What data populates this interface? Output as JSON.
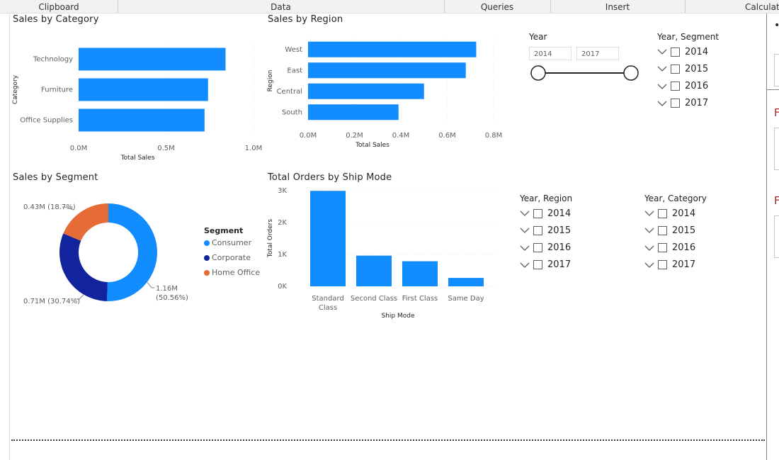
{
  "ribbon": {
    "groups": [
      "Clipboard",
      "Data",
      "Queries",
      "Insert",
      "Calculations"
    ]
  },
  "visuals": {
    "sales_by_category": {
      "title": "Sales by Category",
      "xlabel": "Total Sales",
      "ylabel": "Category",
      "ticks": [
        "0.0M",
        "0.5M",
        "1.0M"
      ]
    },
    "sales_by_region": {
      "title": "Sales by Region",
      "xlabel": "Total Sales",
      "ylabel": "Region",
      "ticks": [
        "0.0M",
        "0.2M",
        "0.4M",
        "0.6M",
        "0.8M"
      ]
    },
    "sales_by_segment": {
      "title": "Sales by Segment",
      "legend_title": "Segment",
      "labels": {
        "home_office": "0.43M (18.7%)",
        "corporate": "0.71M (30.74%)",
        "consumer_value": "1.16M",
        "consumer_pct": "(50.56%)"
      }
    },
    "orders_by_ship_mode": {
      "title": "Total Orders by Ship Mode",
      "xlabel": "Ship Mode",
      "ylabel": "Total Orders",
      "ticks": [
        "0K",
        "1K",
        "2K",
        "3K"
      ],
      "category_lines": [
        [
          "Standard",
          "Class"
        ],
        [
          "Second Class"
        ],
        [
          "First Class"
        ],
        [
          "Same Day"
        ]
      ]
    }
  },
  "chart_data": [
    {
      "type": "bar",
      "orientation": "horizontal",
      "title": "Sales by Category",
      "categories": [
        "Technology",
        "Furniture",
        "Office Supplies"
      ],
      "values": [
        0.84,
        0.74,
        0.72
      ],
      "xlabel": "Total Sales",
      "ylabel": "Category",
      "xlim": [
        0,
        1.0
      ],
      "unit": "M",
      "color": "#118DFF"
    },
    {
      "type": "bar",
      "orientation": "horizontal",
      "title": "Sales by Region",
      "categories": [
        "West",
        "East",
        "Central",
        "South"
      ],
      "values": [
        0.725,
        0.68,
        0.5,
        0.39
      ],
      "xlabel": "Total Sales",
      "ylabel": "Region",
      "xlim": [
        0,
        0.8
      ],
      "unit": "M",
      "color": "#118DFF"
    },
    {
      "type": "pie",
      "donut": true,
      "title": "Sales by Segment",
      "categories": [
        "Consumer",
        "Corporate",
        "Home Office"
      ],
      "values": [
        1.16,
        0.71,
        0.43
      ],
      "percents": [
        50.56,
        30.74,
        18.7
      ],
      "colors": [
        "#118DFF",
        "#12239E",
        "#E66C37"
      ],
      "legend": "right"
    },
    {
      "type": "bar",
      "title": "Total Orders by Ship Mode",
      "categories": [
        "Standard Class",
        "Second Class",
        "First Class",
        "Same Day"
      ],
      "values": [
        2994,
        964,
        787,
        264
      ],
      "xlabel": "Ship Mode",
      "ylabel": "Total Orders",
      "ylim": [
        0,
        3000
      ],
      "color": "#118DFF"
    }
  ],
  "slicers": {
    "year_range": {
      "title": "Year",
      "from": "2014",
      "to": "2017"
    },
    "year_segment": {
      "title": "Year, Segment",
      "items": [
        "2014",
        "2015",
        "2016",
        "2017"
      ]
    },
    "year_region": {
      "title": "Year, Region",
      "items": [
        "2014",
        "2015",
        "2016",
        "2017"
      ]
    },
    "year_category": {
      "title": "Year, Category",
      "items": [
        "2014",
        "2015",
        "2016",
        "2017"
      ]
    }
  },
  "right_pane": {
    "labels": [
      "F",
      "F"
    ]
  }
}
